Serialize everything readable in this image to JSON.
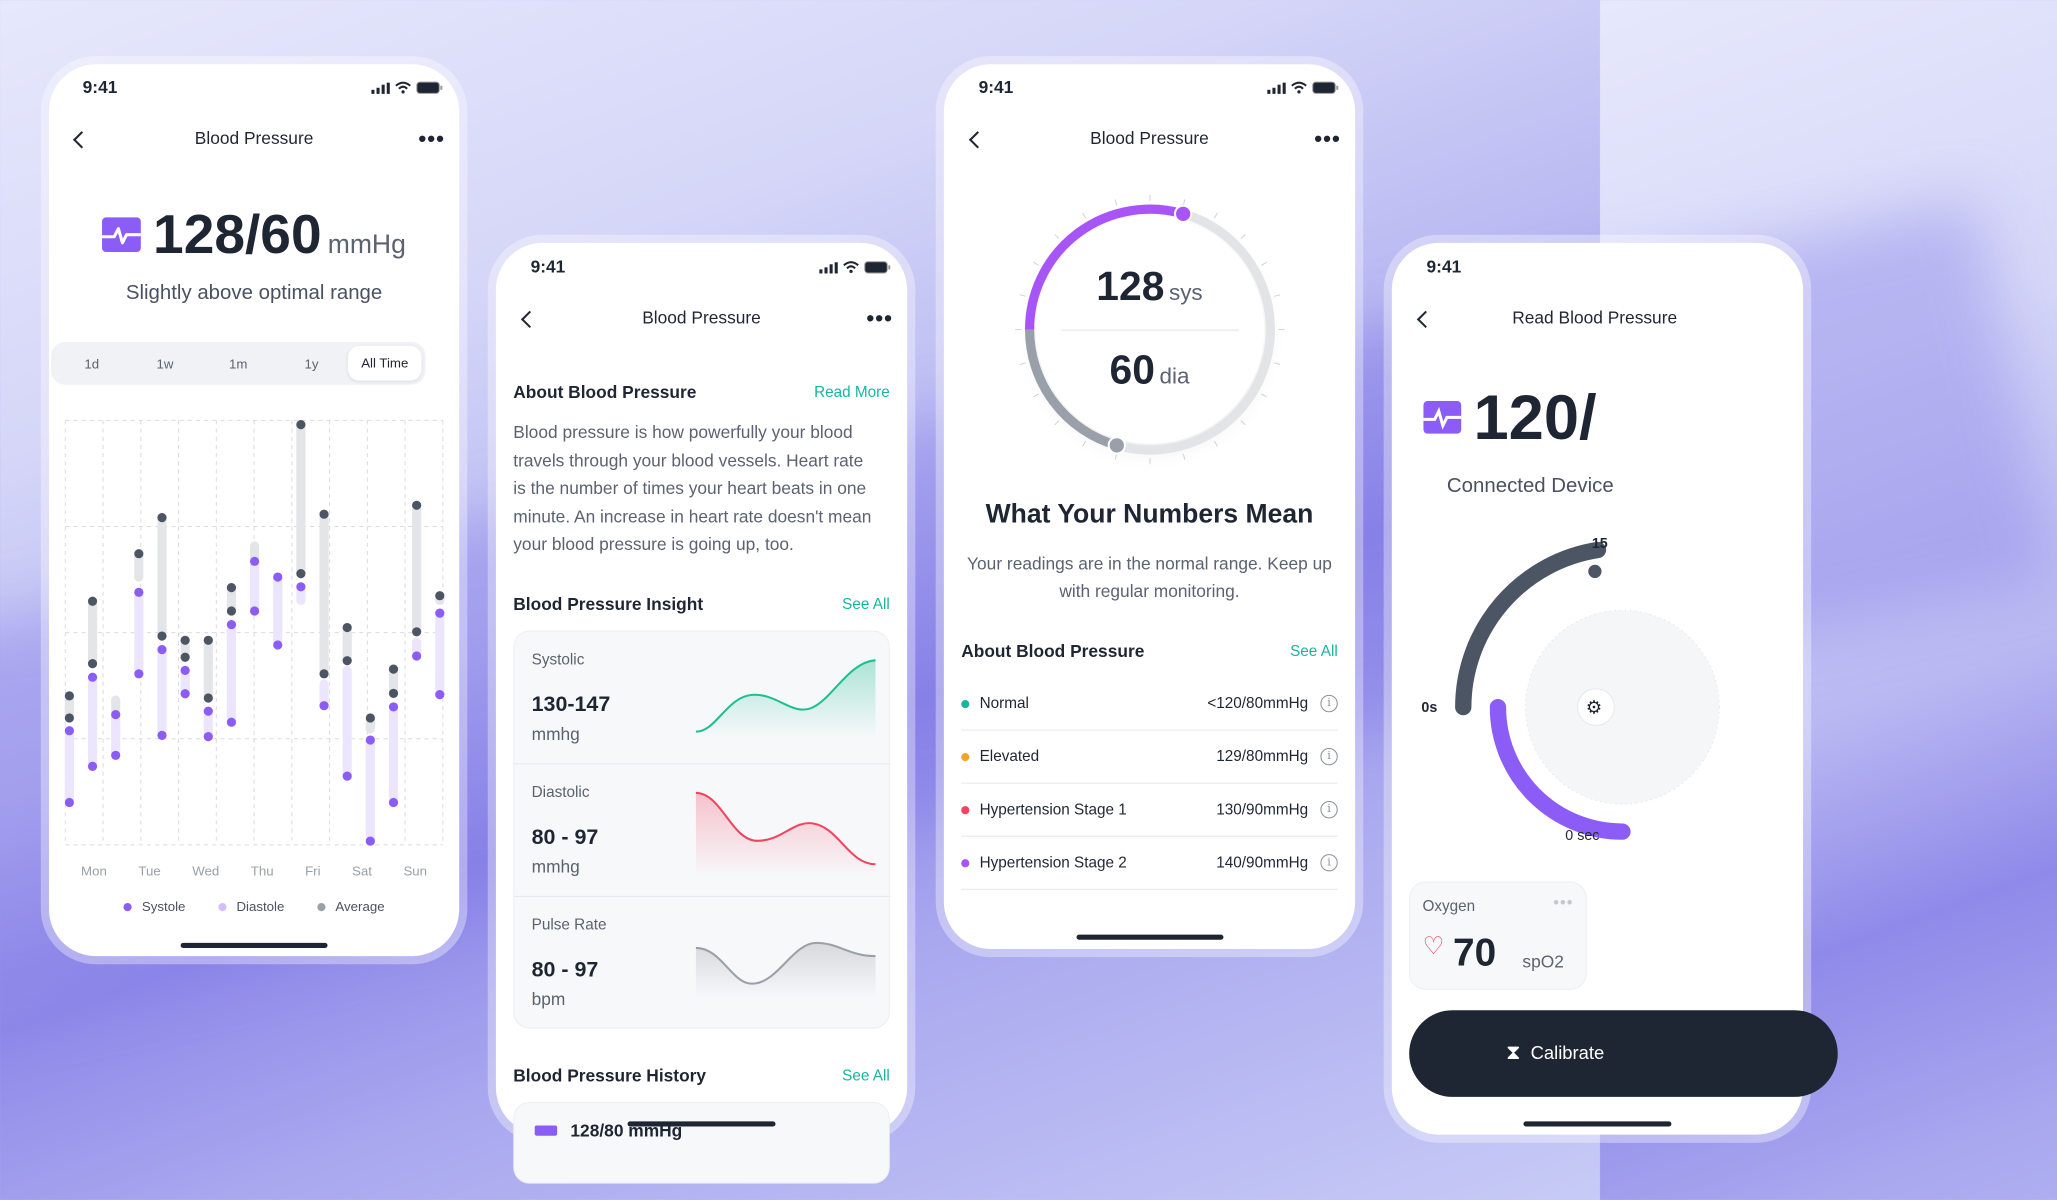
{
  "status_time": "9:41",
  "accent": "#8b5cf6",
  "screen1": {
    "title": "Blood Pressure",
    "reading": "128/60",
    "unit": "mmHg",
    "subtitle": "Slightly above optimal range",
    "ranges": [
      "1d",
      "1w",
      "1m",
      "1y",
      "All Time"
    ],
    "selected_range": "All Time",
    "days": [
      "Mon",
      "Tue",
      "Wed",
      "Thu",
      "Fri",
      "Sat",
      "Sun"
    ],
    "legend": [
      {
        "label": "Systole",
        "color": "#8b5cf6"
      },
      {
        "label": "Diastole",
        "color": "#d4bdfb"
      },
      {
        "label": "Average",
        "color": "#9aa0a8"
      }
    ],
    "columns": [
      {
        "avg": [
          35.1,
          29.9
        ],
        "avg_dots": [
          35.1,
          29.9
        ],
        "sys": [
          26.9,
          10.0
        ],
        "sys_dots": [
          26.9,
          10.0
        ]
      },
      {
        "avg": [
          57.4,
          42.7
        ],
        "avg_dots": [
          57.4,
          42.7
        ],
        "sys": [
          39.5,
          18.5
        ],
        "sys_dots": [
          39.5,
          18.5
        ]
      },
      {
        "avg": [
          34.1,
          31.7
        ],
        "avg_dots": [],
        "sys": [
          30.7,
          21.1
        ],
        "sys_dots": [
          30.7,
          21.1
        ]
      },
      {
        "avg": [
          68.6,
          63.1
        ],
        "avg_dots": [
          68.6
        ],
        "sys": [
          59.5,
          40.3
        ],
        "sys_dots": [
          59.5,
          40.3
        ]
      },
      {
        "avg": [
          77.1,
          49.2
        ],
        "avg_dots": [
          77.1,
          49.2
        ],
        "sys": [
          46.0,
          25.8
        ],
        "sys_dots": [
          46.0,
          25.8
        ]
      },
      {
        "avg": [
          48.2,
          44.2
        ],
        "avg_dots": [
          48.2,
          44.2
        ],
        "sys": [
          41.1,
          35.6
        ],
        "sys_dots": [
          41.1,
          35.6
        ]
      },
      {
        "avg": [
          48.2,
          34.6
        ],
        "avg_dots": [
          48.2,
          34.6
        ],
        "sys": [
          31.5,
          25.5
        ],
        "sys_dots": [
          31.5,
          25.5
        ]
      },
      {
        "avg": [
          60.6,
          55.1
        ],
        "avg_dots": [
          60.6,
          55.1
        ],
        "sys": [
          51.9,
          28.9
        ],
        "sys_dots": [
          51.9,
          28.9
        ]
      },
      {
        "avg": [
          70.4,
          67.8
        ],
        "avg_dots": [],
        "sys": [
          66.8,
          55.1
        ],
        "sys_dots": [
          66.8,
          55.1
        ]
      },
      {
        "avg": null,
        "avg_dots": [],
        "sys": [
          63.1,
          47.1
        ],
        "sys_dots": [
          63.1,
          47.1
        ]
      },
      {
        "avg": [
          99.0,
          63.9
        ],
        "avg_dots": [
          99.0,
          63.9
        ],
        "sys": [
          60.8,
          57.6
        ],
        "sys_dots": [
          60.8
        ]
      },
      {
        "avg": [
          77.9,
          40.3
        ],
        "avg_dots": [
          77.9,
          40.3
        ],
        "sys": [
          37.9,
          32.8
        ],
        "sys_dots": [
          32.8
        ]
      },
      {
        "avg": [
          51.2,
          43.4
        ],
        "avg_dots": [
          51.2,
          43.4
        ],
        "sys": [
          41.1,
          16.2
        ],
        "sys_dots": [
          16.2
        ]
      },
      {
        "avg": [
          29.9,
          27.3
        ],
        "avg_dots": [
          29.9
        ],
        "sys": [
          24.7,
          0.9
        ],
        "sys_dots": [
          24.7,
          0.9
        ]
      },
      {
        "avg": [
          41.4,
          35.7
        ],
        "avg_dots": [
          41.4,
          35.7
        ],
        "sys": [
          32.5,
          10.0
        ],
        "sys_dots": [
          32.5,
          10.0
        ]
      },
      {
        "avg": [
          80.0,
          50.2
        ],
        "avg_dots": [
          80.0,
          50.2
        ],
        "sys": [
          47.8,
          44.5
        ],
        "sys_dots": [
          44.5
        ]
      },
      {
        "avg": [
          58.7,
          57.6
        ],
        "avg_dots": [
          58.7
        ],
        "sys": [
          54.6,
          35.4
        ],
        "sys_dots": [
          54.6,
          35.4
        ]
      }
    ]
  },
  "screen2": {
    "title": "Blood Pressure",
    "about_title": "About Blood Pressure",
    "read_more": "Read More",
    "about_lines": [
      "Blood pressure is how powerfully your blood",
      "travels through your blood vessels. Heart rate",
      "is the number of times your heart beats in one",
      "minute. An increase in heart rate doesn't mean",
      "your blood pressure is going up, too."
    ],
    "insight_title": "Blood Pressure Insight",
    "insight_see_all": "See All",
    "insights": [
      {
        "label": "Systolic",
        "value": "130-147",
        "unit": "mmhg",
        "color": "#1fbf8f"
      },
      {
        "label": "Diastolic",
        "value": "80 - 97",
        "unit": "mmhg",
        "color": "#f0445f"
      },
      {
        "label": "Pulse Rate",
        "value": "80 - 97",
        "unit": "bpm",
        "color": "#9aa0a8"
      }
    ],
    "history_title": "Blood Pressure History",
    "history_see_all": "See All",
    "history_first": "128/80 mmHg"
  },
  "screen3": {
    "title": "Blood Pressure",
    "sys": "128",
    "sys_unit": "sys",
    "dia": "60",
    "dia_unit": "dia",
    "heading": "What Your Numbers Mean",
    "desc_lines": [
      "Your readings are in the normal range. Keep up",
      "with regular monitoring."
    ],
    "about_title": "About Blood Pressure",
    "see_all": "See All",
    "categories": [
      {
        "label": "Normal",
        "value": "<120/80mmHg",
        "color": "#19b4a0"
      },
      {
        "label": "Elevated",
        "value": "129/80mmHg",
        "color": "#f5a524"
      },
      {
        "label": "Hypertension Stage 1",
        "value": "130/90mmHg",
        "color": "#f0445f"
      },
      {
        "label": "Hypertension Stage 2",
        "value": "140/90mmHg",
        "color": "#a855f7"
      }
    ]
  },
  "screen4": {
    "title": "Read Blood Pressure",
    "reading": "120/",
    "subtitle": "Connected Device",
    "timer_max": "15",
    "timer_start": "0s",
    "timer_bottom": "0 sec",
    "oxygen_label": "Oxygen",
    "oxygen_value": "70",
    "oxygen_unit": "spO2",
    "calibrate": "Calibrate"
  }
}
